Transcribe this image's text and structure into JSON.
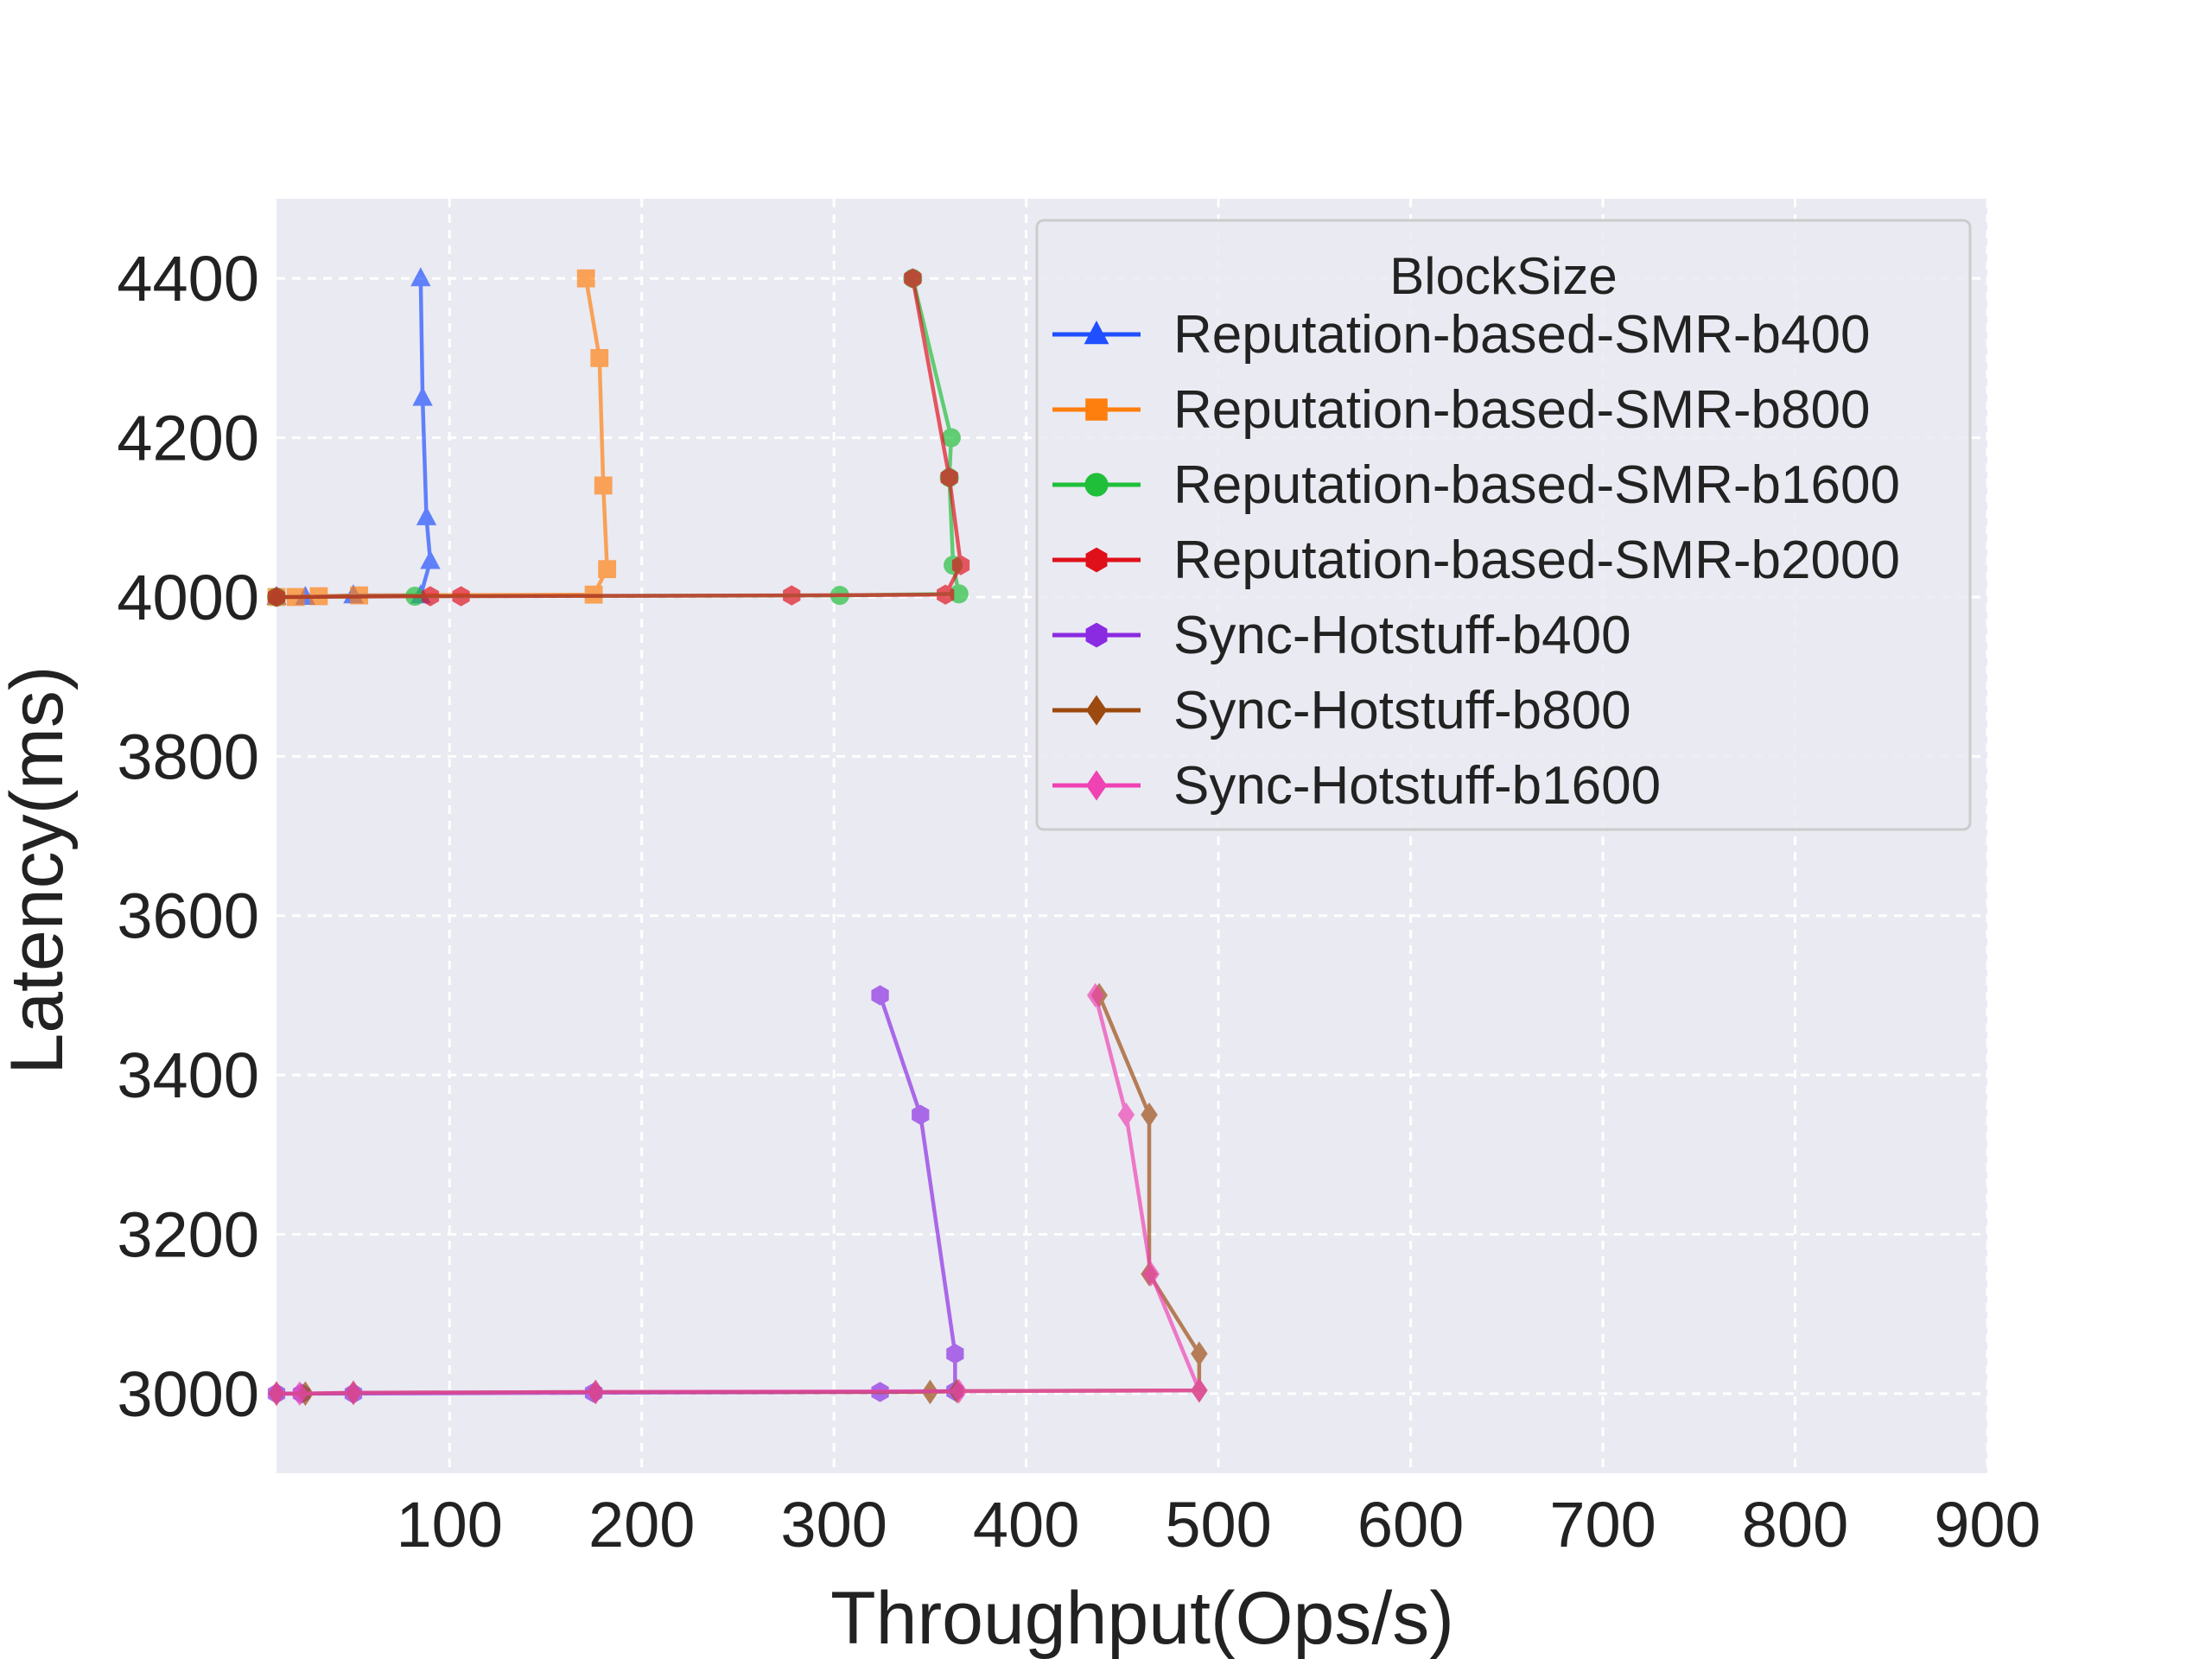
{
  "chart_data": {
    "type": "line",
    "title": "",
    "xlabel": "Throughput(Ops/s)",
    "ylabel": "Latency(ms)",
    "xlim": [
      10,
      900
    ],
    "ylim": [
      2900,
      4500
    ],
    "xticks": [
      100,
      200,
      300,
      400,
      500,
      600,
      700,
      800,
      900
    ],
    "yticks": [
      3000,
      3200,
      3400,
      3600,
      3800,
      4000,
      4200,
      4400
    ],
    "grid": true,
    "background": "#eaeaf2",
    "legend": {
      "title": "BlockSize",
      "placement": "top-right"
    },
    "series": [
      {
        "name": "Reputation-based-SMR-b400",
        "color": "#1f4fff",
        "marker": "triangle",
        "points": [
          [
            10,
            4000
          ],
          [
            25,
            4000
          ],
          [
            50,
            4002
          ],
          [
            85,
            4002
          ],
          [
            90,
            4045
          ],
          [
            88,
            4100
          ],
          [
            86,
            4250
          ],
          [
            85,
            4400
          ]
        ]
      },
      {
        "name": "Reputation-based-SMR-b800",
        "color": "#ff7f0e",
        "marker": "square",
        "points": [
          [
            10,
            4000
          ],
          [
            20,
            4000
          ],
          [
            32,
            4001
          ],
          [
            53,
            4002
          ],
          [
            175,
            4003
          ],
          [
            182,
            4035
          ],
          [
            180,
            4140
          ],
          [
            178,
            4300
          ],
          [
            171,
            4400
          ]
        ]
      },
      {
        "name": "Reputation-based-SMR-b1600",
        "color": "#1fbf3a",
        "marker": "circle",
        "points": [
          [
            10,
            4000
          ],
          [
            82,
            4001
          ],
          [
            303,
            4002
          ],
          [
            365,
            4004
          ],
          [
            362,
            4040
          ],
          [
            360,
            4150
          ],
          [
            361,
            4200
          ],
          [
            341,
            4400
          ]
        ]
      },
      {
        "name": "Reputation-based-SMR-b2000",
        "color": "#e0101a",
        "marker": "hexagon",
        "points": [
          [
            10,
            4000
          ],
          [
            90,
            4001
          ],
          [
            106,
            4001
          ],
          [
            278,
            4002
          ],
          [
            358,
            4003
          ],
          [
            366,
            4040
          ],
          [
            360,
            4150
          ],
          [
            341,
            4400
          ]
        ]
      },
      {
        "name": "Sync-Hotstuff-b400",
        "color": "#8a2be2",
        "marker": "hexagon",
        "points": [
          [
            10,
            3000
          ],
          [
            23,
            3000
          ],
          [
            50,
            3000
          ],
          [
            175,
            3001
          ],
          [
            324,
            3002
          ],
          [
            363,
            3003
          ],
          [
            363,
            3050
          ],
          [
            345,
            3350
          ],
          [
            324,
            3500
          ]
        ]
      },
      {
        "name": "Sync-Hotstuff-b800",
        "color": "#9c4a0f",
        "marker": "diamond",
        "points": [
          [
            10,
            3000
          ],
          [
            25,
            3000
          ],
          [
            50,
            3001
          ],
          [
            176,
            3002
          ],
          [
            350,
            3002
          ],
          [
            364,
            3003
          ],
          [
            490,
            3004
          ],
          [
            490,
            3050
          ],
          [
            464,
            3150
          ],
          [
            464,
            3350
          ],
          [
            438,
            3500
          ]
        ]
      },
      {
        "name": "Sync-Hotstuff-b1600",
        "color": "#ef42b3",
        "marker": "diamond",
        "points": [
          [
            10,
            3000
          ],
          [
            22,
            3000
          ],
          [
            50,
            3001
          ],
          [
            176,
            3002
          ],
          [
            365,
            3003
          ],
          [
            490,
            3004
          ],
          [
            465,
            3150
          ],
          [
            452,
            3350
          ],
          [
            436,
            3500
          ]
        ]
      }
    ]
  }
}
